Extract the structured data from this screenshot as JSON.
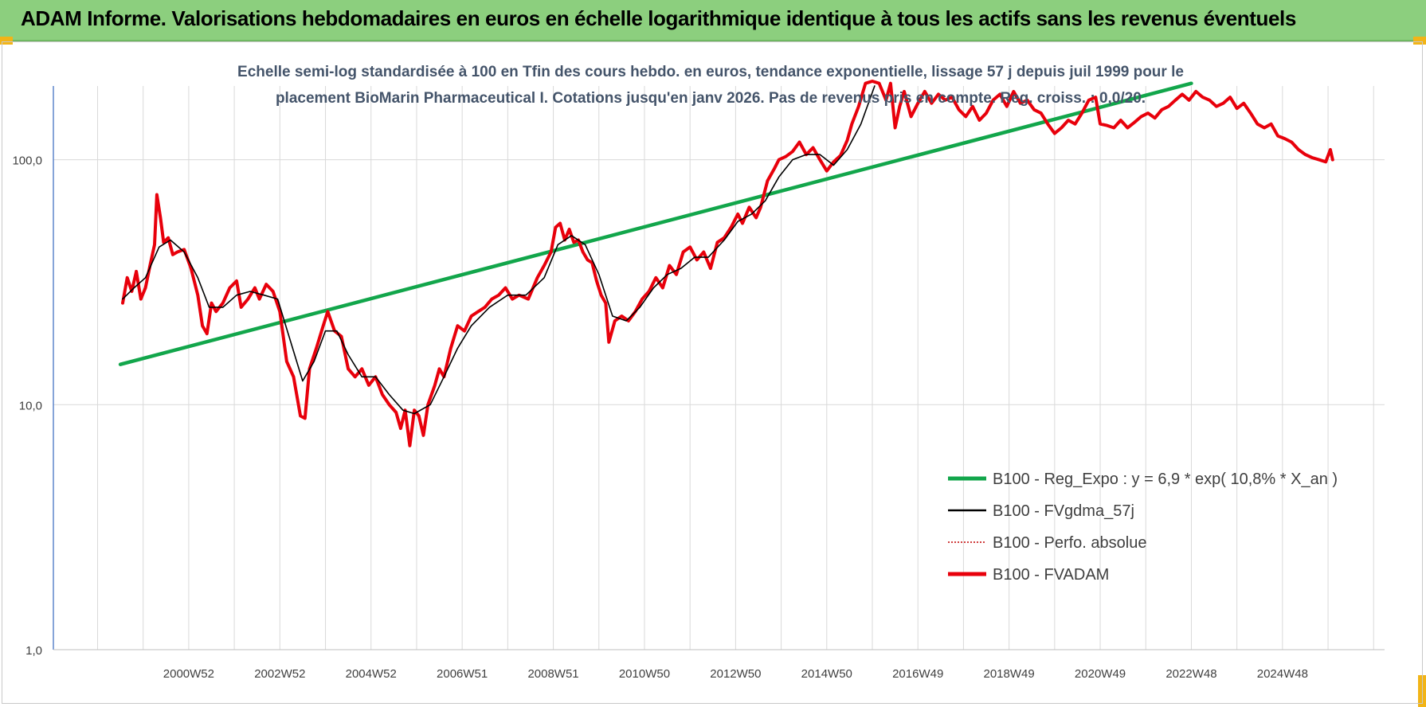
{
  "banner": {
    "title": "ADAM Informe. Valorisations hebdomadaires en euros en échelle logarithmique identique à tous les actifs sans les revenus éventuels"
  },
  "colors": {
    "banner": "#8ccf7e",
    "reg": "#12a64b",
    "fvgdma": "#000000",
    "perfo": "#c00000",
    "fvadam": "#e8000b",
    "axis": "#4472c4",
    "grid": "#d9d9d9"
  },
  "chart_data": {
    "type": "line",
    "title_line1": "Echelle semi-log standardisée à 100 en Tfin des cours hebdo. en euros, tendance exponentielle, lissage 57 j depuis juil 1999 pour le",
    "title_line2": "placement BioMarin Pharmaceutical I. Cotations jusqu'en janv 2026. Pas de revenus pris en compte. Reg. croiss. : 0,0/20.",
    "y_scale": "log",
    "ylim": [
      1,
      200
    ],
    "y_ticks": [
      1,
      10,
      100
    ],
    "y_tick_labels": [
      "1,0",
      "10,0",
      "100,0"
    ],
    "x_ticks": [
      2001,
      2003,
      2005,
      2007,
      2009,
      2011,
      2013,
      2015,
      2017,
      2019,
      2021,
      2023,
      2025
    ],
    "x_tick_labels": [
      "2000W52",
      "2002W52",
      "2004W52",
      "2006W51",
      "2008W51",
      "2010W50",
      "2012W50",
      "2014W50",
      "2016W49",
      "2018W49",
      "2020W49",
      "2022W48",
      "2024W48"
    ],
    "xlim": [
      1998.03,
      2027.24
    ],
    "grid": true,
    "legend_position": "bottom-right",
    "series": [
      {
        "name": "B100 - Reg_Expo : y = 6,9 * exp( 10,8% *  X_an )",
        "color": "#12a64b",
        "style": "solid-thick",
        "points": [
          [
            1999.5,
            14.6
          ],
          [
            2023.0,
            205
          ]
        ]
      },
      {
        "name": "B100 - FVgdma_57j",
        "color": "#000000",
        "style": "solid-thin",
        "points": [
          [
            1999.55,
            27
          ],
          [
            1999.8,
            30
          ],
          [
            2000.05,
            33
          ],
          [
            2000.35,
            44
          ],
          [
            2000.6,
            47
          ],
          [
            2000.9,
            42
          ],
          [
            2001.2,
            33
          ],
          [
            2001.45,
            25
          ],
          [
            2001.75,
            25
          ],
          [
            2002.05,
            28
          ],
          [
            2002.35,
            29
          ],
          [
            2002.65,
            28
          ],
          [
            2002.95,
            27
          ],
          [
            2003.2,
            19
          ],
          [
            2003.5,
            12.5
          ],
          [
            2003.75,
            15
          ],
          [
            2004.0,
            20
          ],
          [
            2004.25,
            20
          ],
          [
            2004.5,
            16
          ],
          [
            2004.8,
            13
          ],
          [
            2005.1,
            13
          ],
          [
            2005.4,
            11
          ],
          [
            2005.7,
            9.5
          ],
          [
            2005.95,
            9.2
          ],
          [
            2006.3,
            10
          ],
          [
            2006.6,
            13
          ],
          [
            2006.9,
            17
          ],
          [
            2007.2,
            21
          ],
          [
            2007.6,
            25
          ],
          [
            2008.0,
            28
          ],
          [
            2008.4,
            28
          ],
          [
            2008.8,
            33
          ],
          [
            2009.1,
            45
          ],
          [
            2009.4,
            49
          ],
          [
            2009.7,
            45
          ],
          [
            2010.0,
            34
          ],
          [
            2010.3,
            23
          ],
          [
            2010.6,
            22
          ],
          [
            2010.9,
            25
          ],
          [
            2011.2,
            30
          ],
          [
            2011.5,
            34
          ],
          [
            2011.8,
            36
          ],
          [
            2012.1,
            40
          ],
          [
            2012.4,
            40
          ],
          [
            2012.75,
            47
          ],
          [
            2013.05,
            56
          ],
          [
            2013.35,
            60
          ],
          [
            2013.65,
            68
          ],
          [
            2013.95,
            85
          ],
          [
            2014.25,
            100
          ],
          [
            2014.55,
            105
          ],
          [
            2014.85,
            105
          ],
          [
            2015.15,
            95
          ],
          [
            2015.45,
            110
          ],
          [
            2015.75,
            140
          ],
          [
            2016.05,
            200
          ]
        ]
      },
      {
        "name": "B100 - Perfo. absolue",
        "color": "#c00000",
        "style": "dotted",
        "points": []
      },
      {
        "name": "B100 - FVADAM",
        "color": "#e8000b",
        "style": "solid-thick",
        "points": [
          [
            1999.55,
            26
          ],
          [
            1999.65,
            33
          ],
          [
            1999.75,
            29
          ],
          [
            1999.85,
            35
          ],
          [
            1999.95,
            27
          ],
          [
            2000.05,
            30
          ],
          [
            2000.15,
            37
          ],
          [
            2000.25,
            45
          ],
          [
            2000.3,
            72
          ],
          [
            2000.38,
            58
          ],
          [
            2000.45,
            46
          ],
          [
            2000.55,
            48
          ],
          [
            2000.65,
            41
          ],
          [
            2000.75,
            42
          ],
          [
            2000.9,
            43
          ],
          [
            2001.05,
            36
          ],
          [
            2001.2,
            28
          ],
          [
            2001.3,
            21
          ],
          [
            2001.4,
            19.5
          ],
          [
            2001.5,
            26
          ],
          [
            2001.6,
            24
          ],
          [
            2001.75,
            26
          ],
          [
            2001.9,
            30
          ],
          [
            2002.05,
            32
          ],
          [
            2002.15,
            25
          ],
          [
            2002.3,
            27
          ],
          [
            2002.45,
            30
          ],
          [
            2002.55,
            27
          ],
          [
            2002.7,
            31
          ],
          [
            2002.85,
            29
          ],
          [
            2003.0,
            24
          ],
          [
            2003.15,
            15
          ],
          [
            2003.3,
            13
          ],
          [
            2003.45,
            9
          ],
          [
            2003.55,
            8.8
          ],
          [
            2003.65,
            14
          ],
          [
            2003.8,
            17
          ],
          [
            2003.95,
            21
          ],
          [
            2004.05,
            24
          ],
          [
            2004.2,
            20
          ],
          [
            2004.35,
            19
          ],
          [
            2004.5,
            14
          ],
          [
            2004.65,
            13
          ],
          [
            2004.8,
            14
          ],
          [
            2004.95,
            12
          ],
          [
            2005.1,
            13
          ],
          [
            2005.25,
            11
          ],
          [
            2005.4,
            10
          ],
          [
            2005.55,
            9.3
          ],
          [
            2005.65,
            8
          ],
          [
            2005.75,
            9.5
          ],
          [
            2005.85,
            6.8
          ],
          [
            2005.95,
            9.5
          ],
          [
            2006.05,
            9
          ],
          [
            2006.15,
            7.5
          ],
          [
            2006.25,
            10
          ],
          [
            2006.4,
            12
          ],
          [
            2006.5,
            14
          ],
          [
            2006.6,
            13
          ],
          [
            2006.75,
            17
          ],
          [
            2006.9,
            21
          ],
          [
            2007.05,
            20
          ],
          [
            2007.2,
            23
          ],
          [
            2007.35,
            24
          ],
          [
            2007.5,
            25
          ],
          [
            2007.65,
            27
          ],
          [
            2007.8,
            28
          ],
          [
            2007.95,
            30
          ],
          [
            2008.1,
            27
          ],
          [
            2008.25,
            28
          ],
          [
            2008.45,
            27
          ],
          [
            2008.65,
            33
          ],
          [
            2008.8,
            37
          ],
          [
            2008.95,
            42
          ],
          [
            2009.05,
            53
          ],
          [
            2009.15,
            55
          ],
          [
            2009.25,
            47
          ],
          [
            2009.35,
            52
          ],
          [
            2009.45,
            46
          ],
          [
            2009.55,
            47
          ],
          [
            2009.65,
            42
          ],
          [
            2009.75,
            39
          ],
          [
            2009.85,
            38
          ],
          [
            2009.95,
            32
          ],
          [
            2010.05,
            28
          ],
          [
            2010.15,
            26
          ],
          [
            2010.22,
            18
          ],
          [
            2010.35,
            22
          ],
          [
            2010.5,
            23
          ],
          [
            2010.65,
            22
          ],
          [
            2010.8,
            24
          ],
          [
            2010.95,
            27
          ],
          [
            2011.1,
            29
          ],
          [
            2011.25,
            33
          ],
          [
            2011.4,
            30
          ],
          [
            2011.55,
            37
          ],
          [
            2011.7,
            34
          ],
          [
            2011.85,
            42
          ],
          [
            2012.0,
            44
          ],
          [
            2012.15,
            39
          ],
          [
            2012.3,
            42
          ],
          [
            2012.45,
            36
          ],
          [
            2012.6,
            46
          ],
          [
            2012.75,
            48
          ],
          [
            2012.9,
            53
          ],
          [
            2013.05,
            60
          ],
          [
            2013.15,
            55
          ],
          [
            2013.3,
            64
          ],
          [
            2013.45,
            58
          ],
          [
            2013.55,
            64
          ],
          [
            2013.7,
            82
          ],
          [
            2013.85,
            92
          ],
          [
            2013.95,
            100
          ],
          [
            2014.1,
            103
          ],
          [
            2014.25,
            108
          ],
          [
            2014.4,
            118
          ],
          [
            2014.55,
            105
          ],
          [
            2014.7,
            112
          ],
          [
            2014.85,
            100
          ],
          [
            2015.0,
            90
          ],
          [
            2015.15,
            98
          ],
          [
            2015.3,
            104
          ],
          [
            2015.45,
            120
          ],
          [
            2015.55,
            140
          ],
          [
            2015.7,
            165
          ],
          [
            2015.85,
            205
          ],
          [
            2016.0,
            214
          ],
          [
            2016.15,
            205
          ],
          [
            2016.3,
            175
          ],
          [
            2016.4,
            205
          ],
          [
            2016.5,
            135
          ],
          [
            2016.6,
            165
          ],
          [
            2016.7,
            190
          ],
          [
            2016.85,
            150
          ],
          [
            2017.0,
            170
          ],
          [
            2017.15,
            190
          ],
          [
            2017.3,
            170
          ],
          [
            2017.45,
            185
          ],
          [
            2017.6,
            175
          ],
          [
            2017.75,
            180
          ],
          [
            2017.9,
            160
          ],
          [
            2018.05,
            150
          ],
          [
            2018.2,
            165
          ],
          [
            2018.35,
            145
          ],
          [
            2018.5,
            155
          ],
          [
            2018.65,
            175
          ],
          [
            2018.8,
            185
          ],
          [
            2018.95,
            165
          ],
          [
            2019.1,
            190
          ],
          [
            2019.25,
            170
          ],
          [
            2019.4,
            175
          ],
          [
            2019.55,
            160
          ],
          [
            2019.7,
            155
          ],
          [
            2019.85,
            140
          ],
          [
            2020.0,
            128
          ],
          [
            2020.15,
            135
          ],
          [
            2020.3,
            145
          ],
          [
            2020.45,
            140
          ],
          [
            2020.6,
            155
          ],
          [
            2020.75,
            175
          ],
          [
            2020.9,
            180
          ],
          [
            2021.0,
            140
          ],
          [
            2021.15,
            138
          ],
          [
            2021.3,
            135
          ],
          [
            2021.45,
            145
          ],
          [
            2021.6,
            135
          ],
          [
            2021.75,
            142
          ],
          [
            2021.9,
            150
          ],
          [
            2022.05,
            155
          ],
          [
            2022.2,
            148
          ],
          [
            2022.35,
            160
          ],
          [
            2022.5,
            165
          ],
          [
            2022.65,
            175
          ],
          [
            2022.8,
            185
          ],
          [
            2022.95,
            175
          ],
          [
            2023.1,
            190
          ],
          [
            2023.25,
            180
          ],
          [
            2023.4,
            175
          ],
          [
            2023.55,
            165
          ],
          [
            2023.7,
            170
          ],
          [
            2023.85,
            180
          ],
          [
            2024.0,
            162
          ],
          [
            2024.15,
            170
          ],
          [
            2024.3,
            155
          ],
          [
            2024.45,
            140
          ],
          [
            2024.6,
            135
          ],
          [
            2024.75,
            140
          ],
          [
            2024.9,
            125
          ],
          [
            2025.05,
            122
          ],
          [
            2025.2,
            118
          ],
          [
            2025.35,
            110
          ],
          [
            2025.5,
            105
          ],
          [
            2025.65,
            102
          ],
          [
            2025.8,
            100
          ],
          [
            2025.95,
            98
          ],
          [
            2026.05,
            110
          ],
          [
            2026.1,
            100
          ]
        ]
      }
    ]
  }
}
